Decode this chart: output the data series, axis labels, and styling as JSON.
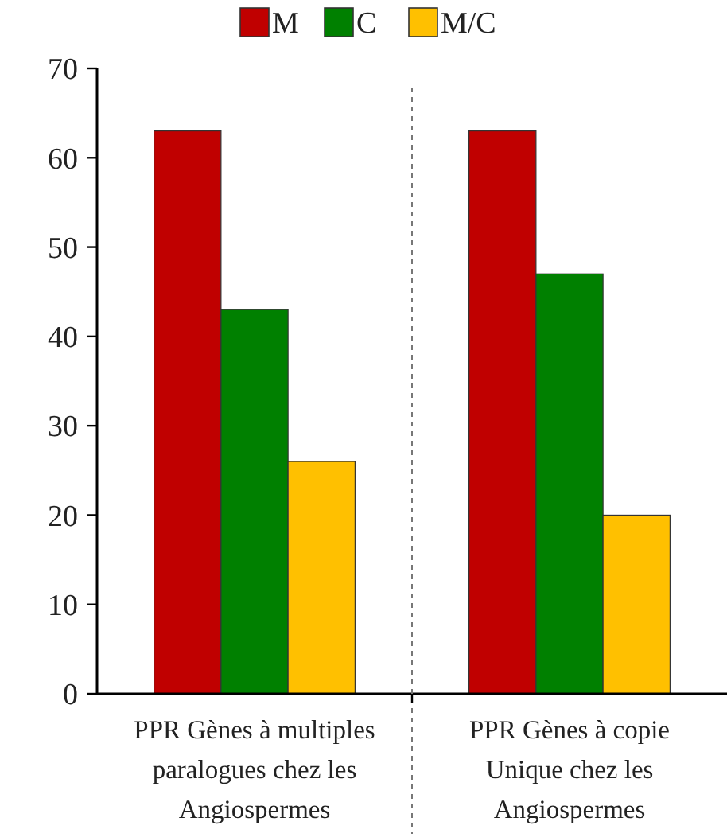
{
  "chart_data": {
    "type": "bar",
    "categories": [
      "PPR Gènes à multiples paralogues chez les Angiospermes",
      "PPR Gènes à copie Unique chez les Angiospermes"
    ],
    "series": [
      {
        "name": "M",
        "color": "#c00000",
        "values": [
          63,
          63
        ]
      },
      {
        "name": "C",
        "color": "#008000",
        "values": [
          43,
          47
        ]
      },
      {
        "name": "M/C",
        "color": "#ffc000",
        "values": [
          26,
          20
        ]
      }
    ],
    "ylim": [
      0,
      70
    ],
    "yticks": [
      0,
      10,
      20,
      30,
      40,
      50,
      60,
      70
    ],
    "grid": false,
    "legend": "top"
  }
}
